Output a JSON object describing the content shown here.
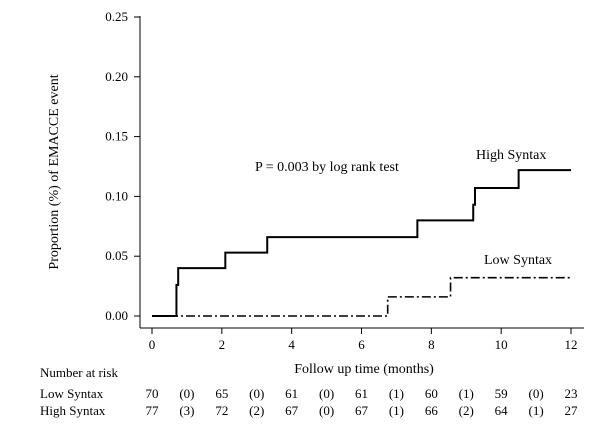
{
  "chart_data": {
    "type": "line",
    "subtype": "kaplan-meier-step",
    "xlabel": "Follow up time (months)",
    "ylabel": "Proportion (%) of EMACCE event",
    "xlim": [
      0,
      12
    ],
    "ylim": [
      0,
      0.25
    ],
    "x_ticks": [
      "0",
      "2",
      "4",
      "6",
      "8",
      "10",
      "12"
    ],
    "y_ticks": [
      "0.00",
      "0.05",
      "0.10",
      "0.15",
      "0.20",
      "0.25"
    ],
    "grid": false,
    "annotation": "P = 0.003 by log rank test",
    "series": [
      {
        "name": "High Syntax",
        "style": "solid",
        "color": "#000000",
        "x": [
          0,
          0.7,
          0.75,
          2.1,
          3.3,
          7.6,
          9.2,
          9.25,
          10.5,
          12
        ],
        "y": [
          0,
          0.026,
          0.04,
          0.053,
          0.066,
          0.08,
          0.093,
          0.107,
          0.122,
          0.122
        ]
      },
      {
        "name": "Low Syntax",
        "style": "dash-dot",
        "color": "#000000",
        "x": [
          0,
          6.75,
          8.55,
          12
        ],
        "y": [
          0,
          0.016,
          0.032,
          0.032
        ]
      }
    ],
    "risk_table": {
      "title": "Number at risk",
      "rows": [
        {
          "label": "Low Syntax",
          "values": [
            "70",
            "(0)",
            "65",
            "(0)",
            "61",
            "(0)",
            "61",
            "(1)",
            "60",
            "(1)",
            "59",
            "(0)",
            "23"
          ]
        },
        {
          "label": "High Syntax",
          "values": [
            "77",
            "(3)",
            "72",
            "(2)",
            "67",
            "(0)",
            "67",
            "(1)",
            "66",
            "(2)",
            "64",
            "(1)",
            "27"
          ]
        }
      ]
    }
  }
}
